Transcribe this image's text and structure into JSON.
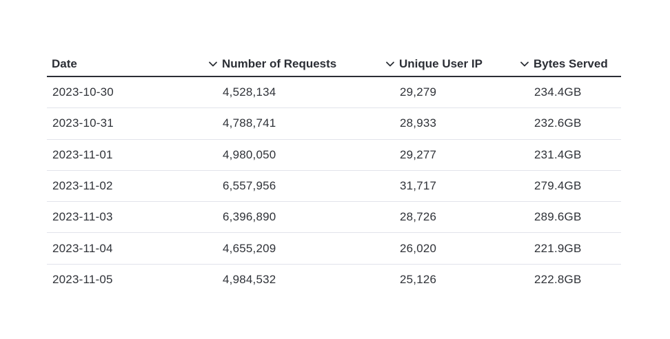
{
  "table": {
    "columns": [
      {
        "label": "Date",
        "sortable": true,
        "icon": "chevron-down-icon"
      },
      {
        "label": "Number of Requests",
        "sortable": true,
        "icon": "chevron-down-icon"
      },
      {
        "label": "Unique User IP",
        "sortable": true,
        "icon": "chevron-down-icon"
      },
      {
        "label": "Bytes Served",
        "sortable": false
      }
    ],
    "rows": [
      [
        "2023-10-30",
        "4,528,134",
        "29,279",
        "234.4GB"
      ],
      [
        "2023-10-31",
        "4,788,741",
        "28,933",
        "232.6GB"
      ],
      [
        "2023-11-01",
        "4,980,050",
        "29,277",
        "231.4GB"
      ],
      [
        "2023-11-02",
        "6,557,956",
        "31,717",
        "279.4GB"
      ],
      [
        "2023-11-03",
        "6,396,890",
        "28,726",
        "289.6GB"
      ],
      [
        "2023-11-04",
        "4,655,209",
        "26,020",
        "221.9GB"
      ],
      [
        "2023-11-05",
        "4,984,532",
        "25,126",
        "222.8GB"
      ]
    ]
  },
  "colors": {
    "header_text": "#2b2e35",
    "cell_text": "#2f3238",
    "header_border": "#2b2e35",
    "row_border": "#e1e3ea"
  }
}
